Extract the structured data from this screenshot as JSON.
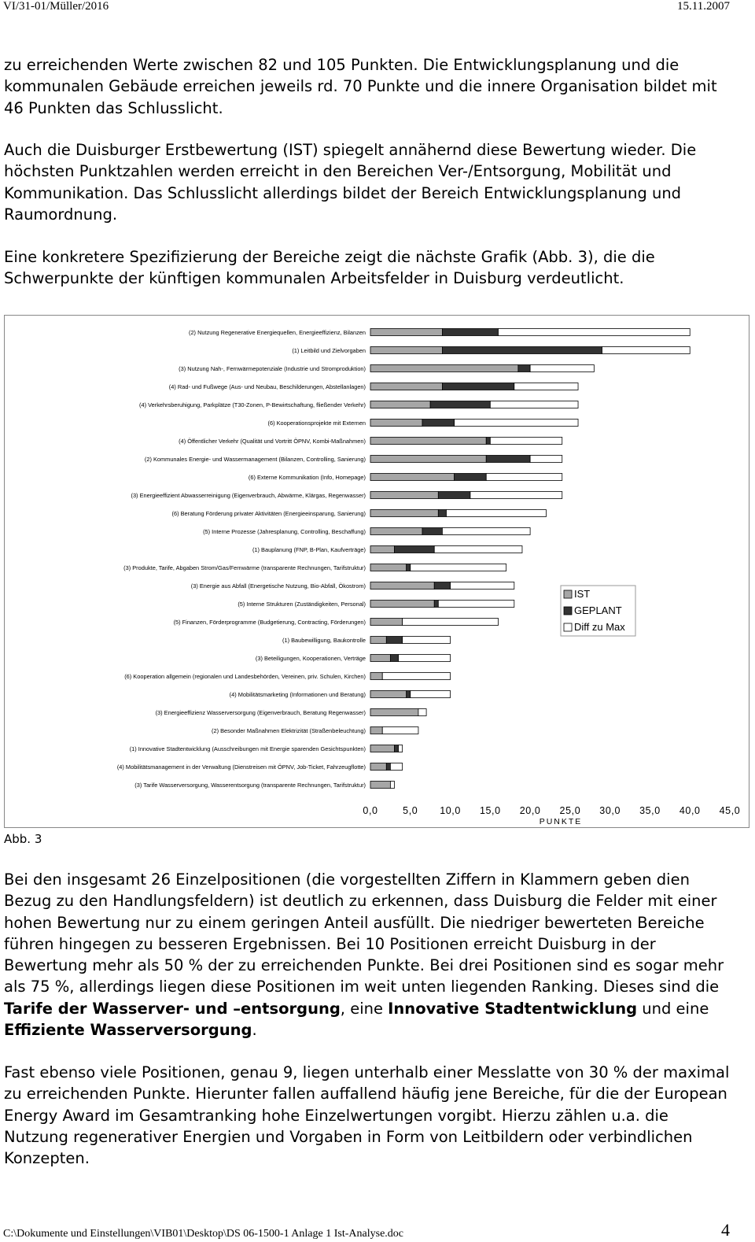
{
  "header": {
    "left": "VI/31-01/Müller/2016",
    "right": "15.11.2007"
  },
  "paragraphs": [
    "zu erreichenden Werte zwischen 82 und 105 Punkten. Die Entwicklungsplanung und die kommunalen Gebäude erreichen jeweils rd. 70 Punkte und die innere Organisation bildet mit 46 Punkten das Schlusslicht.",
    "Auch die Duisburger Erstbewertung (IST) spiegelt annähernd diese Bewertung wieder. Die höchsten Punktzahlen werden erreicht in den Bereichen Ver-/Entsorgung, Mobilität und Kommunikation. Das Schlusslicht allerdings bildet der Bereich Entwicklungsplanung und Raumordnung.",
    "Eine konkretere Spezifizierung der Bereiche zeigt die nächste Grafik (Abb. 3), die die Schwerpunkte der künftigen kommunalen Arbeitsfelder in Duisburg verdeutlicht."
  ],
  "chart_data": {
    "type": "stacked-barh",
    "categories": [
      "(2) Nutzung Regenerative Energiequellen, Energieeffizienz, Bilanzen",
      "(1) Leitbild und Zielvorgaben",
      "(3) Nutzung Nah-, Fernwärmepotenziale (Industrie und Stromproduktion)",
      "(4) Rad- und Fußwege (Aus- und Neubau, Beschilderungen, Abstellanlagen)",
      "(4) Verkehrsberuhigung, Parkplätze (T30-Zonen, P-Bewirtschaftung, fließender Verkehr)",
      "(6) Kooperationsprojekte mit Externen",
      "(4) Öffentlicher Verkehr (Qualität und Vortritt ÖPNV, Kombi-Maßnahmen)",
      "(2) Kommunales Energie- und Wassermanagement (Bilanzen, Controlling, Sanierung)",
      "(6) Externe Kommunikation (Info, Homepage)",
      "(3) Energieeffizient Abwasserreinigung (Eigenverbrauch, Abwärme, Klärgas, Regenwasser)",
      "(6) Beratung Förderung privater Aktivitäten (Energieeinsparung, Sanierung)",
      "(5) Interne Prozesse (Jahresplanung, Controlling, Beschaffung)",
      "(1) Bauplanung (FNP, B-Plan, Kaufverträge)",
      "(3) Produkte, Tarife, Abgaben Strom/Gas/Fernwärme (transparente Rechnungen, Tarifstruktur)",
      "(3) Energie aus Abfall (Energetische Nutzung, Bio-Abfall, Ökostrom)",
      "(5) Interne Strukturen (Zuständigkeiten, Personal)",
      "(5) Finanzen, Förderprogramme (Budgetierung, Contracting, Förderungen)",
      "(1) Baubewilligung, Baukontrolle",
      "(3) Beteiligungen, Kooperationen, Verträge",
      "(6) Kooperation allgemein (regionalen und Landesbehörden, Vereinen, priv. Schulen, Kirchen)",
      "(4) Mobilitätsmarketing (Informationen und Beratung)",
      "(3) Energieeffizienz Wasserversorgung (Eigenverbrauch, Beratung Regenwasser)",
      "(2) Besonder Maßnahmen Elektrizität (Straßenbeleuchtung)",
      "(1) Innovative Stadtentwicklung (Ausschreibungen mit Energie sparenden Gesichtspunkten)",
      "(4) Mobilitätsmanagement in der Verwaltung (Dienstreisen mit ÖPNV, Job-Ticket, Fahrzeugflotte)",
      "(3) Tarife Wasserversorgung, Wasserentsorgung (transparente Rechnungen, Tarifstruktur)"
    ],
    "series": [
      {
        "name": "IST",
        "color": "#a6a6a6",
        "values": [
          9,
          9,
          18.5,
          9,
          7.5,
          6.5,
          14.5,
          14.5,
          10.5,
          8.5,
          8.5,
          6.5,
          3,
          4.5,
          8,
          8,
          4,
          2,
          2.5,
          1.5,
          4.5,
          6,
          1.5,
          3,
          2,
          2.5
        ]
      },
      {
        "name": "GEPLANT",
        "color": "#333333",
        "values": [
          7,
          20,
          1.5,
          9,
          7.5,
          4,
          0.5,
          5.5,
          4,
          4,
          1,
          2.5,
          5,
          0.5,
          2,
          0.5,
          0,
          2,
          1,
          0,
          0.5,
          0,
          0,
          0.5,
          0.5,
          0
        ]
      },
      {
        "name": "Diff zu Max",
        "color": "#ffffff",
        "values": [
          24,
          11,
          8,
          8,
          11,
          15.5,
          9,
          4,
          9.5,
          11.5,
          12.5,
          11,
          11,
          12,
          8,
          9.5,
          12,
          6,
          6.5,
          8.5,
          5,
          1,
          4.5,
          0.5,
          1.5,
          0.5
        ]
      }
    ],
    "xlim": [
      0,
      45
    ],
    "xticks": [
      {
        "value": 0,
        "label": "0,0"
      },
      {
        "value": 5,
        "label": "5,0"
      },
      {
        "value": 10,
        "label": "10,0"
      },
      {
        "value": 15,
        "label": "15,0"
      },
      {
        "value": 20,
        "label": "20,0"
      },
      {
        "value": 25,
        "label": "25,0"
      },
      {
        "value": 30,
        "label": "30,0"
      },
      {
        "value": 35,
        "label": "35,0"
      },
      {
        "value": 40,
        "label": "40,0"
      },
      {
        "value": 45,
        "label": "45,0"
      }
    ],
    "x_label": "PUNKTE",
    "legend": "right"
  },
  "caption": "Abb. 3",
  "paragraphs2": [
    [
      {
        "text": "Bei den insgesamt 26 Einzelpositionen (die vorgestellten Ziffern in Klammern geben dien Bezug zu den Handlungsfeldern) ist deutlich zu erkennen, dass Duisburg die Felder mit einer hohen Bewertung nur zu einem geringen Anteil ausfüllt. Die niedriger bewerteten Bereiche führen hingegen zu besseren Ergebnissen. Bei 10 Positionen erreicht Duisburg in der Bewertung mehr als 50 % der zu erreichenden Punkte. Bei drei Positionen sind es sogar mehr als 75 %, allerdings liegen diese Positionen im weit unten liegenden Ranking. Dieses sind die ",
        "bold": false
      },
      {
        "text": "Tarife der Wasserver- und –entsorgung",
        "bold": true
      },
      {
        "text": ", eine ",
        "bold": false
      },
      {
        "text": "Innovative Stadtentwicklung",
        "bold": true
      },
      {
        "text": " und eine ",
        "bold": false
      },
      {
        "text": "Effiziente Wasserversorgung",
        "bold": true
      },
      {
        "text": ".",
        "bold": false
      }
    ],
    [
      {
        "text": "Fast ebenso viele Positionen, genau 9,  liegen unterhalb einer Messlatte von 30 % der maximal zu erreichenden Punkte. Hierunter fallen auffallend häufig jene Bereiche, für die der European Energy Award im Gesamtranking hohe Einzelwertungen vorgibt. Hierzu zählen u.a. die Nutzung regenerativer Energien und Vorgaben in Form von Leitbildern oder verbindlichen Konzepten.",
        "bold": false
      }
    ]
  ],
  "footer": {
    "path": "C:\\Dokumente und Einstellungen\\VIB01\\Desktop\\DS 06-1500-1 Anlage 1 Ist-Analyse.doc",
    "page": "4"
  }
}
